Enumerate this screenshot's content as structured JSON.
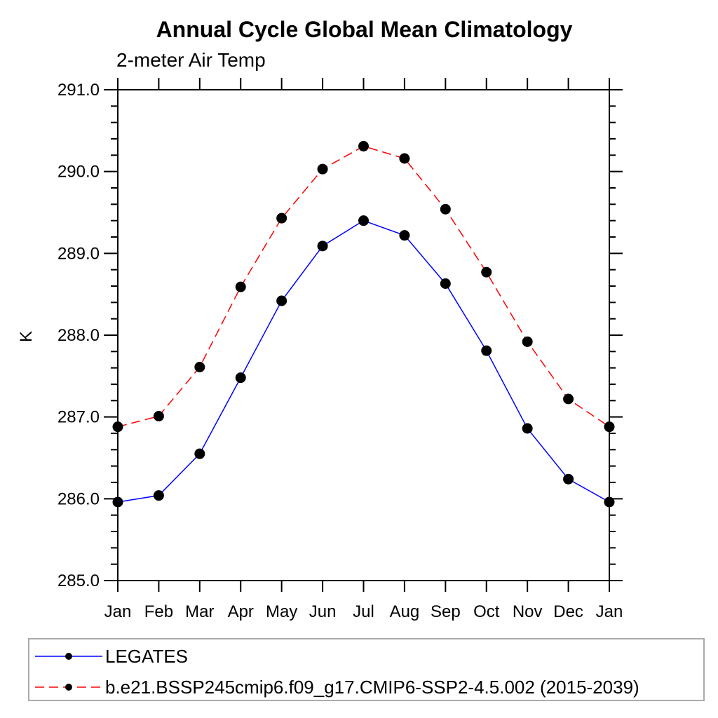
{
  "chart_data": {
    "type": "line",
    "title": "Annual Cycle Global Mean Climatology",
    "subtitle": "2-meter Air Temp",
    "xlabel": "",
    "ylabel": "K",
    "x_tick_labels": [
      "Jan",
      "Feb",
      "Mar",
      "Apr",
      "May",
      "Jun",
      "Jul",
      "Aug",
      "Sep",
      "Oct",
      "Nov",
      "Dec",
      "Jan"
    ],
    "ylim": [
      285.0,
      291.0
    ],
    "y_major_step": 1.0,
    "y_minor_step": 0.2,
    "y_tick_labels": [
      "285.0",
      "286.0",
      "287.0",
      "288.0",
      "289.0",
      "290.0",
      "291.0"
    ],
    "grid": false,
    "legend_position": "bottom",
    "axis_color": "#000000",
    "marker": "filled-circle",
    "marker_color": "#000000",
    "series": [
      {
        "name": "LEGATES",
        "color": "#0000ff",
        "line_style": "solid",
        "values": [
          285.96,
          286.04,
          286.55,
          287.48,
          288.42,
          289.09,
          289.4,
          289.22,
          288.63,
          287.81,
          286.86,
          286.24,
          285.96
        ]
      },
      {
        "name": "b.e21.BSSP245cmip6.f09_g17.CMIP6-SSP2-4.5.002 (2015-2039)",
        "color": "#ff0000",
        "line_style": "dashed",
        "values": [
          286.88,
          287.01,
          287.61,
          288.59,
          289.43,
          290.03,
          290.31,
          290.16,
          289.54,
          288.77,
          287.92,
          287.22,
          286.88
        ]
      }
    ]
  }
}
